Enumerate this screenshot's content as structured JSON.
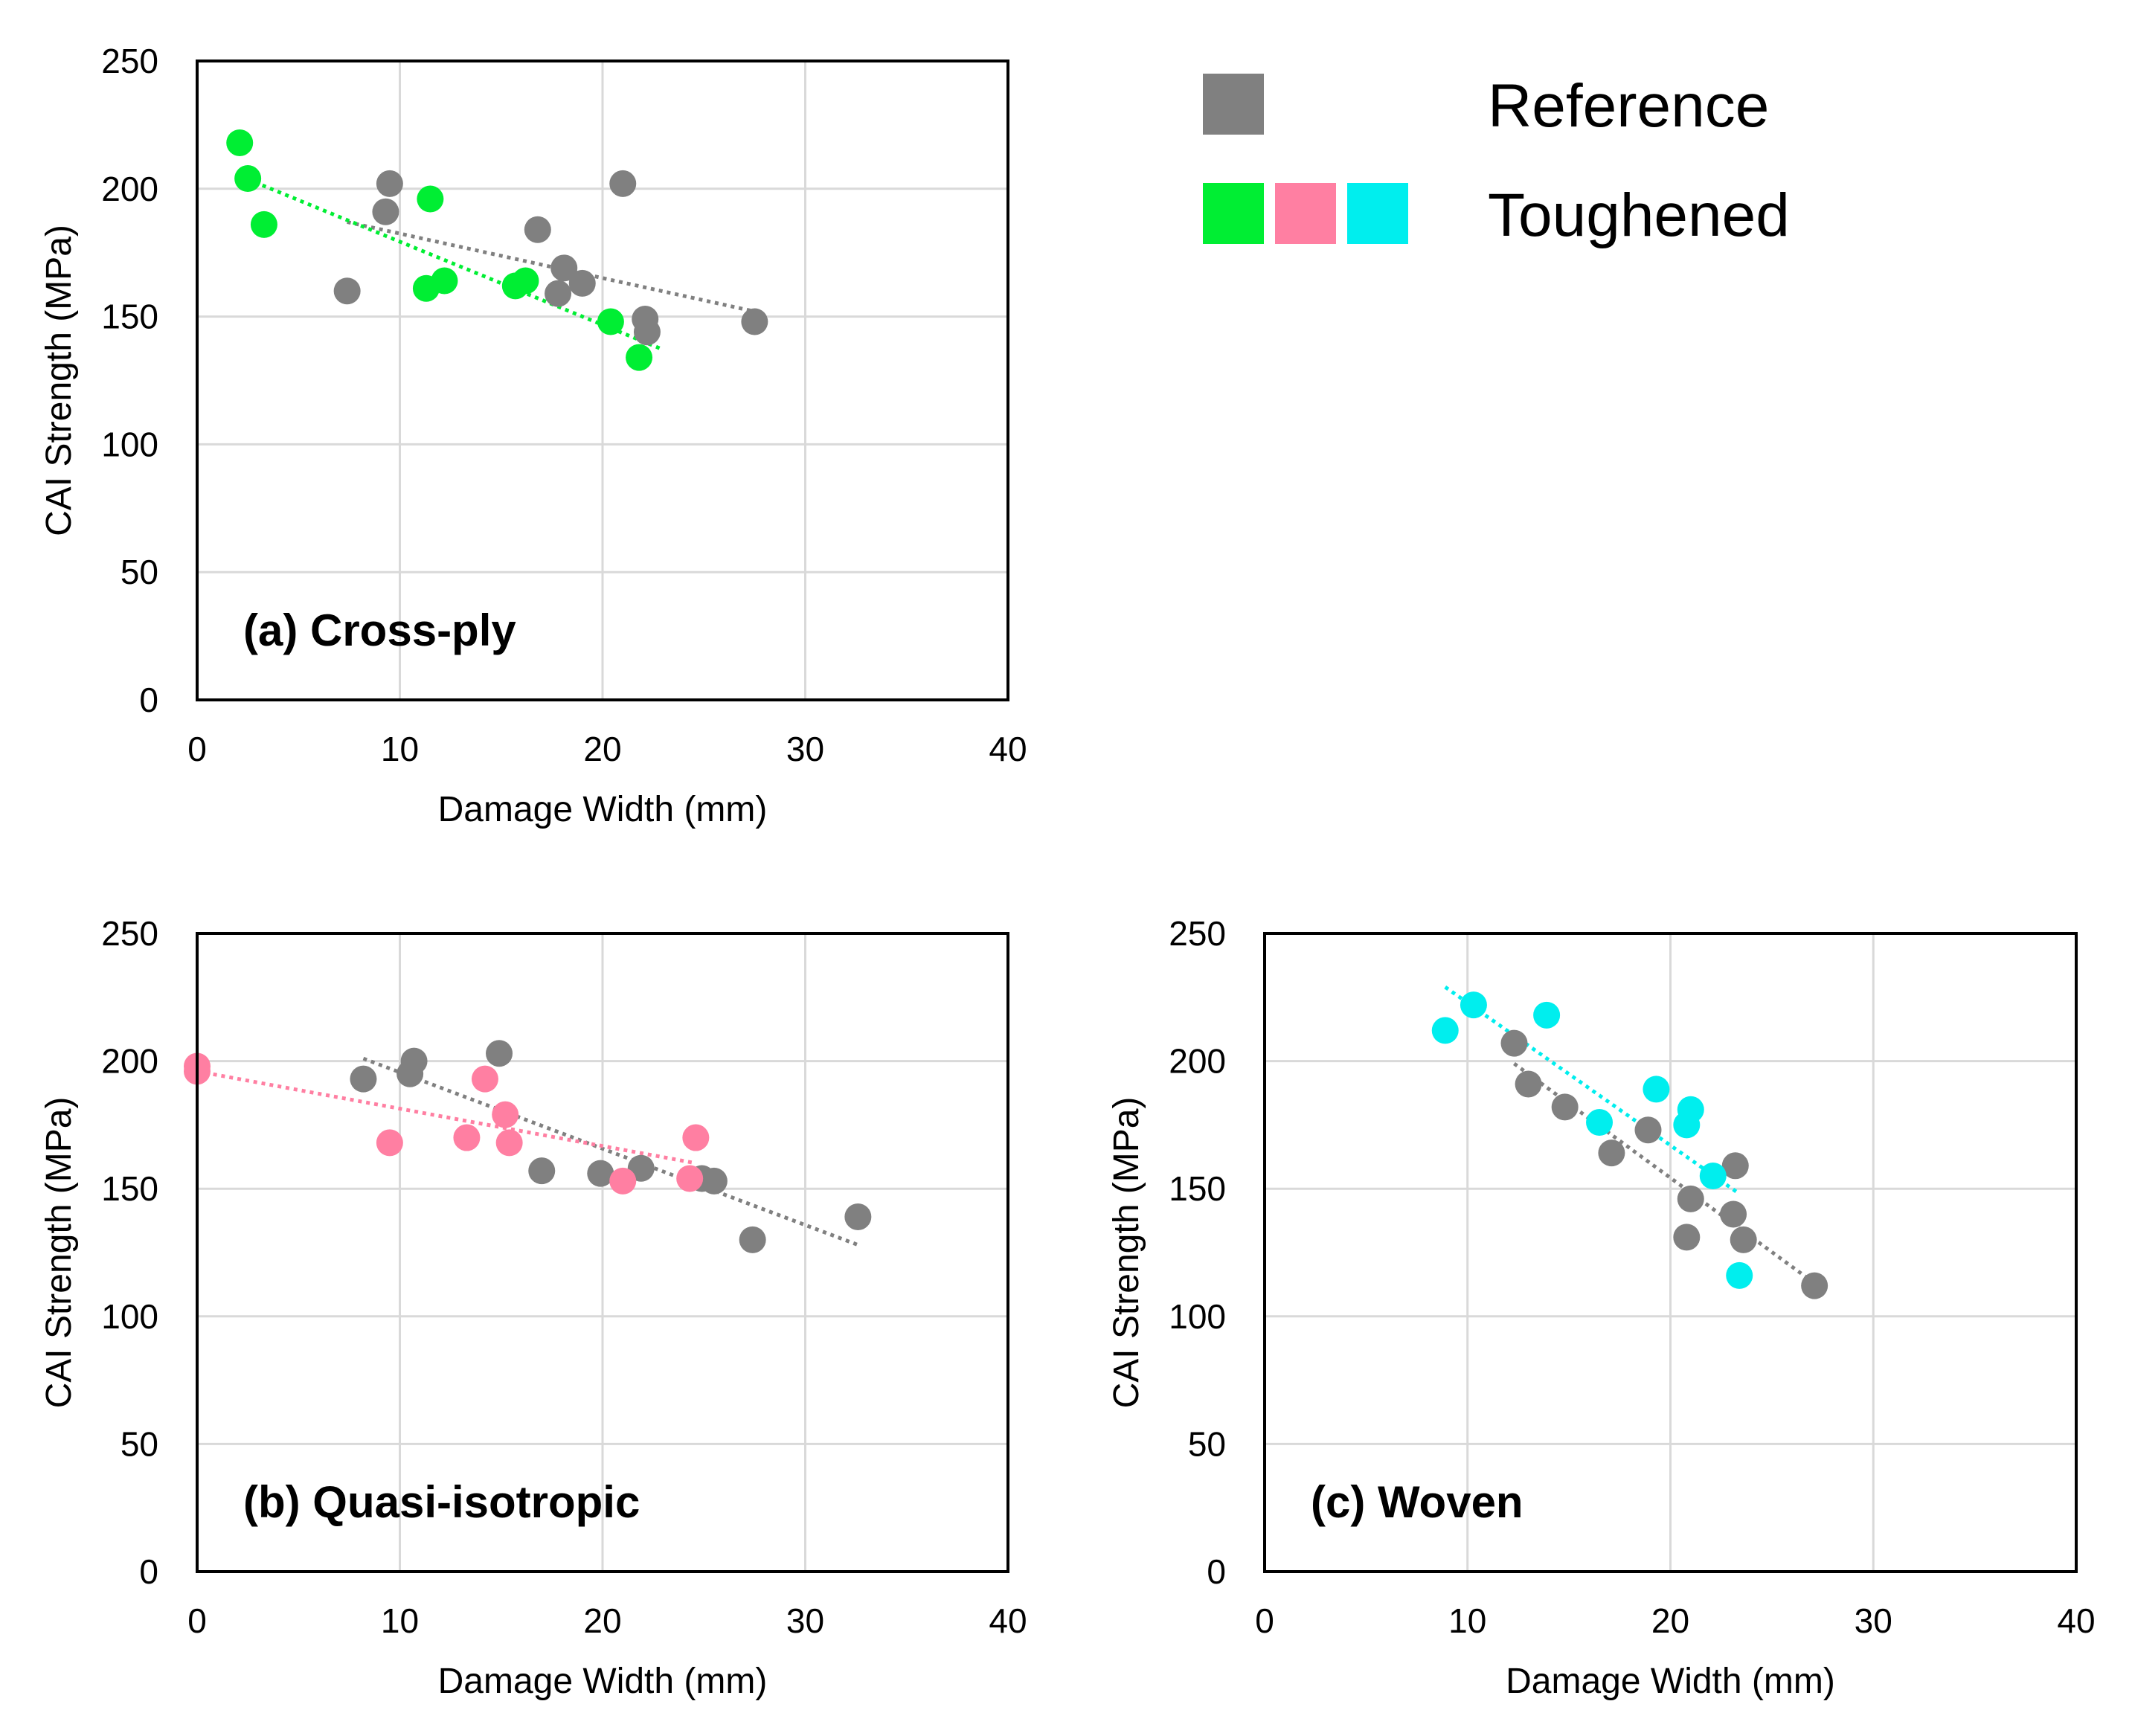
{
  "legend": {
    "reference_label": "Reference",
    "toughened_label": "Toughened",
    "reference_color": "#808080",
    "toughened_colors": [
      "#00ee33",
      "#ff7fa2",
      "#00eeee"
    ]
  },
  "chart_data": [
    {
      "type": "scatter",
      "panel_label": "(a) Cross-ply",
      "xlabel": "Damage Width (mm)",
      "ylabel": "CAI Strength (MPa)",
      "xlim": [
        0,
        40
      ],
      "ylim": [
        0,
        250
      ],
      "xticks": [
        0,
        10,
        20,
        30,
        40
      ],
      "yticks": [
        0,
        50,
        100,
        150,
        200,
        250
      ],
      "grid": true,
      "series": [
        {
          "group": "Reference",
          "color": "#808080",
          "points": [
            [
              7.4,
              160
            ],
            [
              9.3,
              191
            ],
            [
              9.5,
              202
            ],
            [
              16.8,
              184
            ],
            [
              17.8,
              159
            ],
            [
              18.1,
              169
            ],
            [
              19.0,
              163
            ],
            [
              21.0,
              202
            ],
            [
              22.1,
              149
            ],
            [
              22.2,
              144
            ],
            [
              27.5,
              148
            ]
          ],
          "trendline": [
            [
              7.4,
              187
            ],
            [
              27.5,
              152
            ]
          ]
        },
        {
          "group": "Toughened",
          "color": "#00ee33",
          "points": [
            [
              2.1,
              218
            ],
            [
              2.5,
              204
            ],
            [
              3.3,
              186
            ],
            [
              11.3,
              161
            ],
            [
              11.5,
              196
            ],
            [
              12.2,
              164
            ],
            [
              15.7,
              162
            ],
            [
              16.2,
              164
            ],
            [
              20.4,
              148
            ],
            [
              21.8,
              134
            ]
          ],
          "trendline": [
            [
              2.1,
              205
            ],
            [
              23.0,
              137
            ]
          ]
        }
      ]
    },
    {
      "type": "scatter",
      "panel_label": "(b) Quasi-isotropic",
      "xlabel": "Damage Width (mm)",
      "ylabel": "CAI Strength (MPa)",
      "xlim": [
        0,
        40
      ],
      "ylim": [
        0,
        250
      ],
      "xticks": [
        0,
        10,
        20,
        30,
        40
      ],
      "yticks": [
        0,
        50,
        100,
        150,
        200,
        250
      ],
      "grid": true,
      "series": [
        {
          "group": "Reference",
          "color": "#808080",
          "points": [
            [
              8.2,
              193
            ],
            [
              10.5,
              195
            ],
            [
              10.7,
              200
            ],
            [
              14.9,
              203
            ],
            [
              17.0,
              157
            ],
            [
              19.9,
              156
            ],
            [
              21.9,
              158
            ],
            [
              24.9,
              154
            ],
            [
              25.5,
              153
            ],
            [
              27.4,
              130
            ],
            [
              32.6,
              139
            ]
          ],
          "trendline": [
            [
              8.2,
              201
            ],
            [
              32.6,
              128
            ]
          ]
        },
        {
          "group": "Toughened",
          "color": "#ff7fa2",
          "points": [
            [
              0.0,
              198
            ],
            [
              0.0,
              196
            ],
            [
              9.5,
              168
            ],
            [
              13.3,
              170
            ],
            [
              14.2,
              193
            ],
            [
              15.2,
              179
            ],
            [
              15.4,
              168
            ],
            [
              21.0,
              153
            ],
            [
              24.3,
              154
            ],
            [
              24.6,
              170
            ]
          ],
          "trendline": [
            [
              0.0,
              196
            ],
            [
              24.6,
              160
            ]
          ]
        }
      ]
    },
    {
      "type": "scatter",
      "panel_label": "(c) Woven",
      "xlabel": "Damage Width (mm)",
      "ylabel": "CAI Strength (MPa)",
      "xlim": [
        0,
        40
      ],
      "ylim": [
        0,
        250
      ],
      "xticks": [
        0,
        10,
        20,
        30,
        40
      ],
      "yticks": [
        0,
        50,
        100,
        150,
        200,
        250
      ],
      "grid": true,
      "series": [
        {
          "group": "Reference",
          "color": "#808080",
          "points": [
            [
              12.3,
              207
            ],
            [
              13.0,
              191
            ],
            [
              14.8,
              182
            ],
            [
              17.1,
              164
            ],
            [
              18.9,
              173
            ],
            [
              20.8,
              131
            ],
            [
              21.0,
              146
            ],
            [
              23.1,
              140
            ],
            [
              23.2,
              159
            ],
            [
              23.6,
              130
            ],
            [
              27.1,
              112
            ]
          ],
          "trendline": [
            [
              12.3,
              199
            ],
            [
              27.1,
              113
            ]
          ]
        },
        {
          "group": "Toughened",
          "color": "#00eeee",
          "points": [
            [
              8.9,
              212
            ],
            [
              10.3,
              222
            ],
            [
              13.9,
              218
            ],
            [
              16.5,
              176
            ],
            [
              19.3,
              189
            ],
            [
              20.8,
              175
            ],
            [
              21.0,
              181
            ],
            [
              22.1,
              155
            ],
            [
              23.4,
              116
            ]
          ],
          "trendline": [
            [
              8.9,
              229
            ],
            [
              23.4,
              148
            ]
          ]
        }
      ]
    }
  ]
}
